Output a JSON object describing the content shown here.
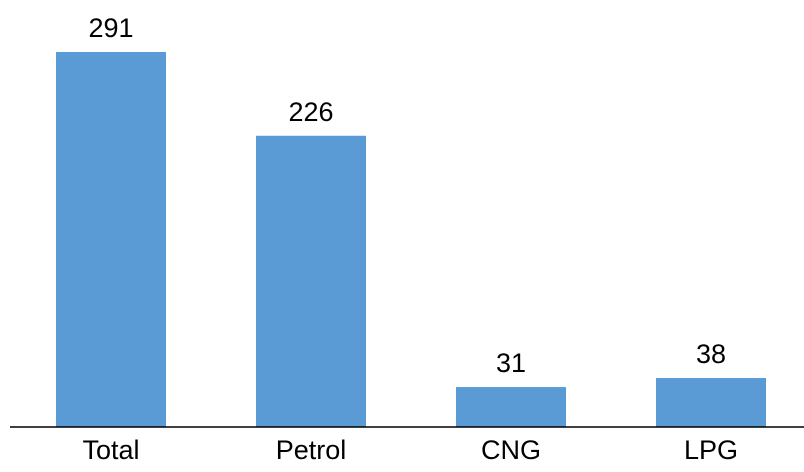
{
  "chart_data": {
    "type": "bar",
    "categories": [
      "Total",
      "Petrol",
      "CNG",
      "LPG"
    ],
    "values": [
      291,
      226,
      31,
      38
    ],
    "color": "#5b9bd5"
  }
}
